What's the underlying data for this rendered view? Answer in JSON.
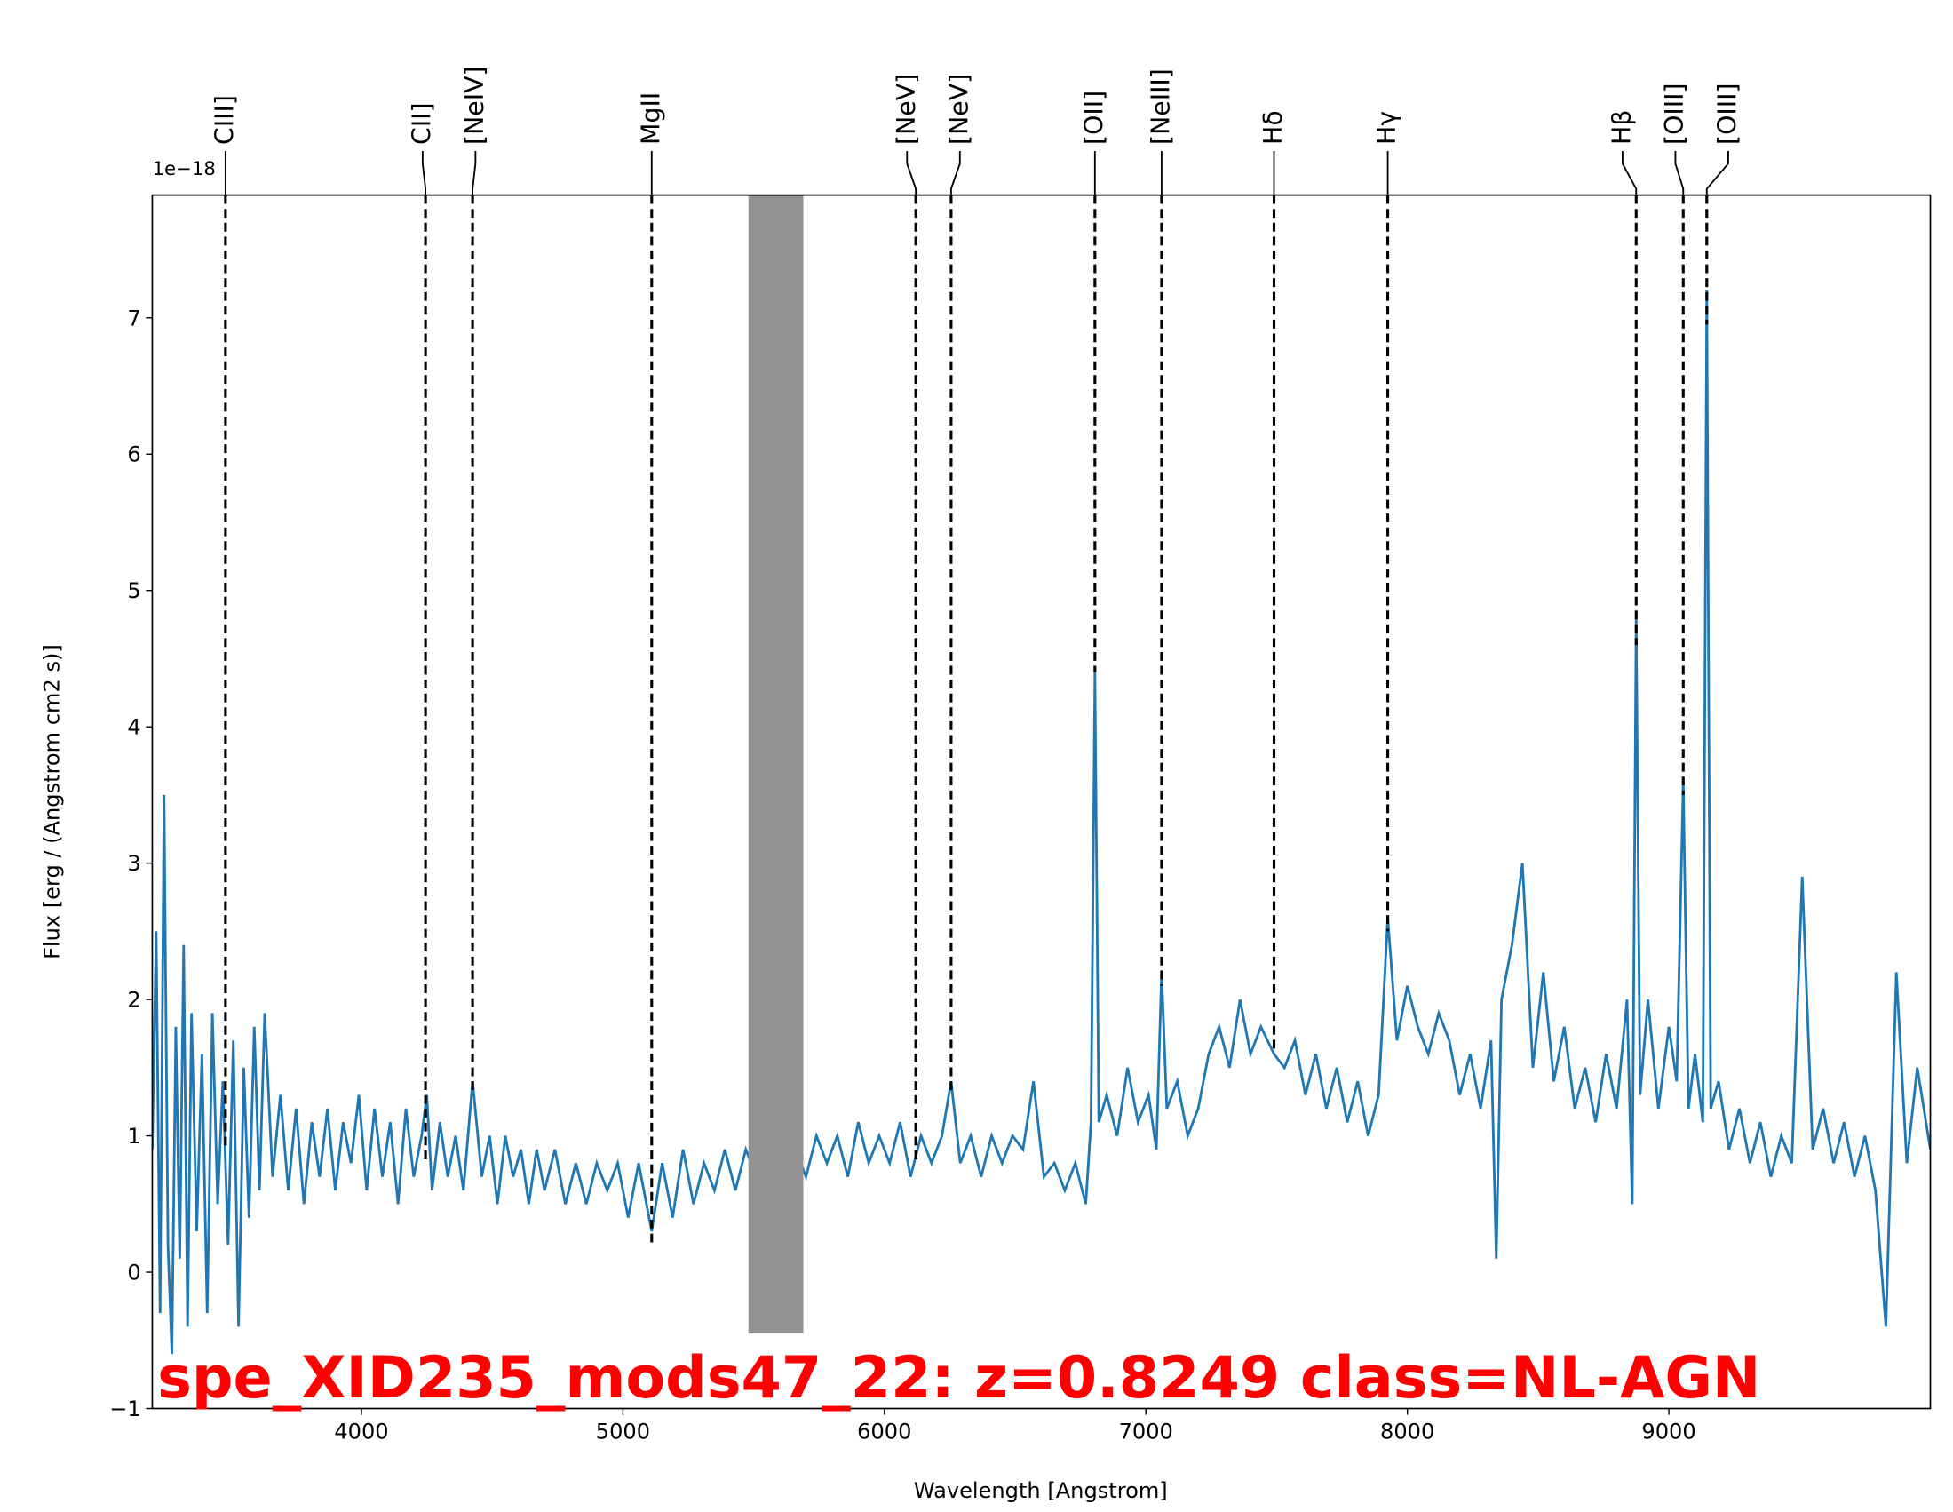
{
  "chart_data": {
    "type": "line",
    "title": "spe_XID235_mods47_22: z=0.8249 class=NL-AGN",
    "x_label": "Wavelength [Angstrom]",
    "y_label": "Flux [erg / (Angstrom cm2 s)]",
    "y_offset_label": "1e−18",
    "xlim": [
      3200,
      10000
    ],
    "ylim": [
      -1,
      7.9
    ],
    "xticks": [
      4000,
      5000,
      6000,
      7000,
      8000,
      9000
    ],
    "yticks": [
      {
        "value": -1,
        "label": "−1"
      },
      0,
      1,
      2,
      3,
      4,
      5,
      6,
      7
    ],
    "masked_region": {
      "x": [
        5480,
        5690
      ],
      "y": [
        -0.45,
        7.9
      ],
      "color": "#929292"
    },
    "series": [
      {
        "name": "spectrum",
        "color": "#1f77b4",
        "x": [
          3200,
          3215,
          3230,
          3245,
          3260,
          3275,
          3290,
          3305,
          3320,
          3335,
          3350,
          3370,
          3390,
          3410,
          3430,
          3450,
          3470,
          3490,
          3510,
          3530,
          3550,
          3570,
          3590,
          3610,
          3630,
          3660,
          3690,
          3720,
          3750,
          3780,
          3810,
          3840,
          3870,
          3900,
          3930,
          3960,
          3990,
          4020,
          4050,
          4080,
          4110,
          4140,
          4170,
          4200,
          4230,
          4250,
          4270,
          4300,
          4330,
          4360,
          4390,
          4425,
          4460,
          4490,
          4520,
          4550,
          4580,
          4610,
          4640,
          4670,
          4700,
          4740,
          4780,
          4820,
          4860,
          4900,
          4940,
          4980,
          5020,
          5060,
          5110,
          5150,
          5190,
          5230,
          5270,
          5310,
          5350,
          5390,
          5430,
          5470,
          5510,
          5560,
          5610,
          5660,
          5700,
          5740,
          5780,
          5820,
          5860,
          5900,
          5940,
          5980,
          6020,
          6060,
          6100,
          6140,
          6180,
          6220,
          6255,
          6290,
          6330,
          6370,
          6410,
          6450,
          6490,
          6530,
          6570,
          6610,
          6650,
          6690,
          6730,
          6770,
          6790,
          6805,
          6820,
          6850,
          6890,
          6930,
          6970,
          7010,
          7040,
          7060,
          7080,
          7120,
          7160,
          7200,
          7240,
          7280,
          7320,
          7360,
          7400,
          7440,
          7490,
          7530,
          7570,
          7610,
          7650,
          7690,
          7730,
          7770,
          7810,
          7850,
          7890,
          7925,
          7960,
          8000,
          8040,
          8080,
          8120,
          8160,
          8200,
          8240,
          8280,
          8320,
          8340,
          8360,
          8400,
          8440,
          8480,
          8520,
          8560,
          8600,
          8640,
          8680,
          8720,
          8760,
          8800,
          8840,
          8860,
          8875,
          8890,
          8920,
          8960,
          9000,
          9030,
          9055,
          9075,
          9100,
          9130,
          9145,
          9160,
          9190,
          9230,
          9270,
          9310,
          9350,
          9390,
          9430,
          9470,
          9510,
          9550,
          9590,
          9630,
          9670,
          9710,
          9750,
          9790,
          9830,
          9870,
          9910,
          9950,
          10000
        ],
        "values": [
          0.9,
          2.5,
          -0.3,
          3.5,
          0.2,
          -0.6,
          1.8,
          0.1,
          2.4,
          -0.4,
          1.9,
          0.3,
          1.6,
          -0.3,
          1.9,
          0.5,
          1.4,
          0.2,
          1.7,
          -0.4,
          1.5,
          0.4,
          1.8,
          0.6,
          1.9,
          0.7,
          1.3,
          0.6,
          1.2,
          0.5,
          1.1,
          0.7,
          1.2,
          0.6,
          1.1,
          0.8,
          1.3,
          0.6,
          1.2,
          0.7,
          1.1,
          0.5,
          1.2,
          0.7,
          1.0,
          1.3,
          0.6,
          1.1,
          0.7,
          1.0,
          0.6,
          1.4,
          0.7,
          1.0,
          0.5,
          1.0,
          0.7,
          0.9,
          0.5,
          0.9,
          0.6,
          0.9,
          0.5,
          0.8,
          0.5,
          0.8,
          0.6,
          0.8,
          0.4,
          0.8,
          0.3,
          0.8,
          0.4,
          0.9,
          0.5,
          0.8,
          0.6,
          0.9,
          0.6,
          0.9,
          0.7,
          0.9,
          0.7,
          0.9,
          0.7,
          1.0,
          0.8,
          1.0,
          0.7,
          1.1,
          0.8,
          1.0,
          0.8,
          1.1,
          0.7,
          1.0,
          0.8,
          1.0,
          1.4,
          0.8,
          1.0,
          0.7,
          1.0,
          0.8,
          1.0,
          0.9,
          1.4,
          0.7,
          0.8,
          0.6,
          0.8,
          0.5,
          1.1,
          4.4,
          1.1,
          1.3,
          1.0,
          1.5,
          1.1,
          1.3,
          0.9,
          2.2,
          1.2,
          1.4,
          1.0,
          1.2,
          1.6,
          1.8,
          1.5,
          2.0,
          1.6,
          1.8,
          1.6,
          1.5,
          1.7,
          1.3,
          1.6,
          1.2,
          1.5,
          1.1,
          1.4,
          1.0,
          1.3,
          2.6,
          1.7,
          2.1,
          1.8,
          1.6,
          1.9,
          1.7,
          1.3,
          1.6,
          1.2,
          1.7,
          0.1,
          2.0,
          2.4,
          3.0,
          1.5,
          2.2,
          1.4,
          1.8,
          1.2,
          1.5,
          1.1,
          1.6,
          1.2,
          2.0,
          0.5,
          4.8,
          1.3,
          2.0,
          1.2,
          1.8,
          1.4,
          3.6,
          1.2,
          1.6,
          1.1,
          7.2,
          1.2,
          1.4,
          0.9,
          1.2,
          0.8,
          1.1,
          0.7,
          1.0,
          0.8,
          2.9,
          0.9,
          1.2,
          0.8,
          1.1,
          0.7,
          1.0,
          0.6,
          -0.4,
          2.2,
          0.8,
          1.5,
          0.9
        ]
      }
    ],
    "lines": [
      {
        "label": "CIII]",
        "wavelength": 3480,
        "flux": 0.9
      },
      {
        "label": "CII]",
        "wavelength": 4245,
        "flux": 0.8
      },
      {
        "label": "[NeIV]",
        "wavelength": 4425,
        "flux": 1.3
      },
      {
        "label": "MgII",
        "wavelength": 5110,
        "flux": 0.2
      },
      {
        "label": "[NeV]",
        "wavelength": 6120,
        "flux": 0.8
      },
      {
        "label": "[NeV]",
        "wavelength": 6255,
        "flux": 1.3
      },
      {
        "label": "[OII]",
        "wavelength": 6805,
        "flux": 4.4
      },
      {
        "label": "[NeIII]",
        "wavelength": 7060,
        "flux": 2.1
      },
      {
        "label": "Hδ",
        "wavelength": 7490,
        "flux": 1.6
      },
      {
        "label": "Hγ",
        "wavelength": 7925,
        "flux": 2.5
      },
      {
        "label": "Hβ",
        "wavelength": 8875,
        "flux": 4.6
      },
      {
        "label": "[OIII]",
        "wavelength": 9055,
        "flux": 3.5
      },
      {
        "label": "[OIII]",
        "wavelength": 9145,
        "flux": 6.95
      }
    ],
    "line_color": "#000000",
    "title_color": "#ff0000"
  }
}
